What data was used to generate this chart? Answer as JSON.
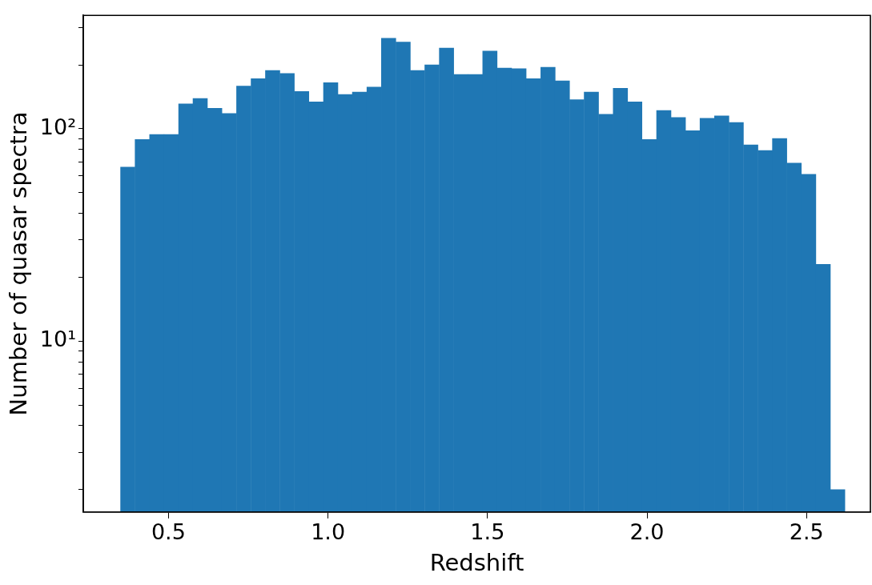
{
  "chart_data": {
    "type": "histogram",
    "xlabel": "Redshift",
    "ylabel": "Number of quasar spectra",
    "bins": [
      0.35,
      0.395,
      0.441,
      0.486,
      0.532,
      0.577,
      0.622,
      0.668,
      0.713,
      0.759,
      0.804,
      0.849,
      0.895,
      0.94,
      0.986,
      1.031,
      1.076,
      1.122,
      1.167,
      1.213,
      1.258,
      1.303,
      1.349,
      1.394,
      1.44,
      1.485,
      1.53,
      1.576,
      1.621,
      1.667,
      1.712,
      1.757,
      1.803,
      1.848,
      1.894,
      1.939,
      1.984,
      2.03,
      2.075,
      2.121,
      2.166,
      2.211,
      2.257,
      2.302,
      2.348,
      2.393,
      2.438,
      2.484,
      2.529,
      2.575,
      2.62
    ],
    "values": [
      66,
      89,
      94,
      94,
      131,
      139,
      125,
      118,
      159,
      172,
      188,
      182,
      150,
      134,
      165,
      145,
      149,
      157,
      267,
      256,
      188,
      200,
      240,
      180,
      180,
      232,
      193,
      192,
      172,
      195,
      168,
      137,
      149,
      117,
      155,
      134,
      89,
      122,
      113,
      98,
      112,
      115,
      107,
      84,
      79,
      90,
      69,
      61,
      23,
      2
    ],
    "color": "#1f77b4",
    "log": true,
    "xlim": [
      0.233,
      2.7
    ],
    "ylim": [
      1.57,
      342
    ],
    "xticks": [
      0.5,
      {
        "value": 1,
        "label": "1.0"
      },
      1.5,
      {
        "value": 2,
        "label": "2.0"
      },
      2.5
    ],
    "yticks": [
      {
        "value": 2,
        "label": null
      },
      {
        "value": 3,
        "label": null
      },
      {
        "value": 4,
        "label": null
      },
      {
        "value": 5,
        "label": null
      },
      {
        "value": 6,
        "label": null
      },
      {
        "value": 7,
        "label": null
      },
      {
        "value": 8,
        "label": null
      },
      {
        "value": 9,
        "label": null
      },
      {
        "value": 10,
        "label": "10¹"
      },
      {
        "value": 20,
        "label": null
      },
      {
        "value": 30,
        "label": null
      },
      {
        "value": 40,
        "label": null
      },
      {
        "value": 50,
        "label": null
      },
      {
        "value": 60,
        "label": null
      },
      {
        "value": 70,
        "label": null
      },
      {
        "value": 80,
        "label": null
      },
      {
        "value": 90,
        "label": null
      },
      {
        "value": 100,
        "label": "10²"
      },
      {
        "value": 200,
        "label": null
      },
      {
        "value": 300,
        "label": null
      }
    ],
    "grid": false,
    "legend": false
  }
}
